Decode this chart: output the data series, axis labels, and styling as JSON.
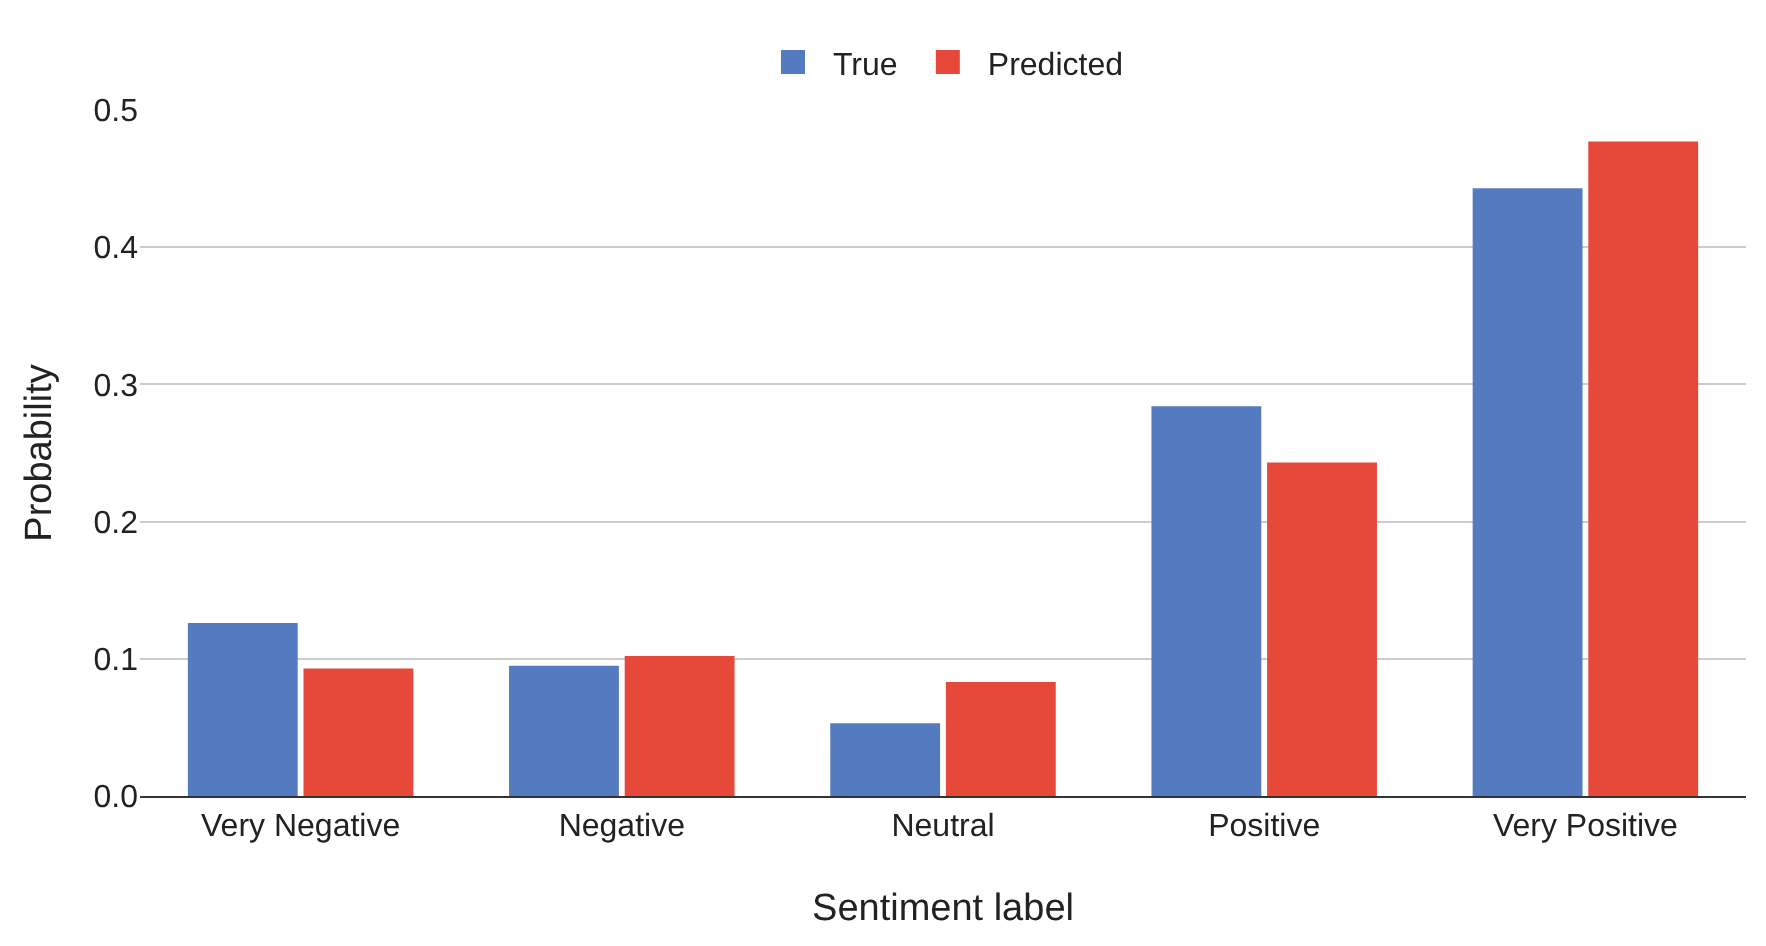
{
  "chart_data": {
    "type": "bar",
    "xlabel": "Sentiment label",
    "ylabel": "Probability",
    "categories": [
      "Very Negative",
      "Negative",
      "Neutral",
      "Positive",
      "Very Positive"
    ],
    "series": [
      {
        "name": "True",
        "color": "#547bbf",
        "values": [
          0.126,
          0.095,
          0.053,
          0.284,
          0.443
        ]
      },
      {
        "name": "Predicted",
        "color": "#e6483a",
        "values": [
          0.093,
          0.102,
          0.083,
          0.243,
          0.477
        ]
      }
    ],
    "ylim": [
      0,
      0.5
    ],
    "yticks": [
      {
        "value": 0,
        "label": "0.0"
      },
      0.1,
      0.2,
      0.3,
      0.4,
      0.5
    ],
    "grid": "y",
    "legend": "top"
  }
}
